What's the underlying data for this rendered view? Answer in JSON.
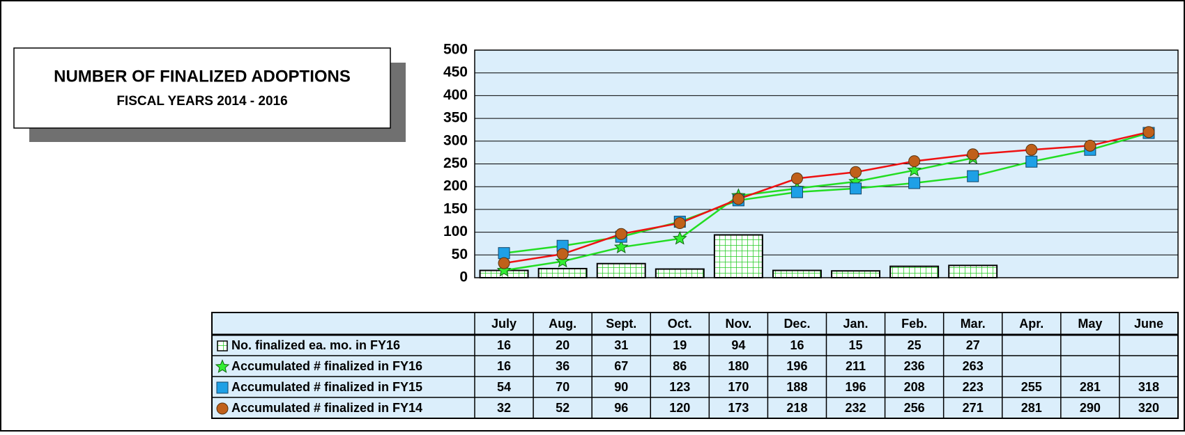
{
  "chart_data": {
    "type": "combo",
    "title": "NUMBER OF FINALIZED ADOPTIONS",
    "subtitle": "FISCAL YEARS 2014 - 2016",
    "categories": [
      "July",
      "Aug.",
      "Sept.",
      "Oct.",
      "Nov.",
      "Dec.",
      "Jan.",
      "Feb.",
      "Mar.",
      "Apr.",
      "May",
      "June"
    ],
    "ylim": [
      0,
      500
    ],
    "yticks": [
      0,
      50,
      100,
      150,
      200,
      250,
      300,
      350,
      400,
      450,
      500
    ],
    "grid": true,
    "series": [
      {
        "name": "No. finalized ea. mo. in FY16",
        "kind": "bar",
        "color": "#22dd22",
        "values": [
          16,
          20,
          31,
          19,
          94,
          16,
          15,
          25,
          27,
          null,
          null,
          null
        ]
      },
      {
        "name": "Accumulated # finalized in FY16",
        "kind": "star",
        "color": "#33ee33",
        "line_color": "#22dd22",
        "values": [
          16,
          36,
          67,
          86,
          180,
          196,
          211,
          236,
          263,
          null,
          null,
          null
        ]
      },
      {
        "name": "Accumulated # finalized in FY15",
        "kind": "square",
        "color": "#1ea0e6",
        "line_color": "#22dd22",
        "values": [
          54,
          70,
          90,
          123,
          170,
          188,
          196,
          208,
          223,
          255,
          281,
          318
        ]
      },
      {
        "name": "Accumulated # finalized in FY14",
        "kind": "circle",
        "color": "#c0601a",
        "line_color": "#ee1111",
        "values": [
          32,
          52,
          96,
          120,
          173,
          218,
          232,
          256,
          271,
          281,
          290,
          320
        ]
      }
    ]
  }
}
